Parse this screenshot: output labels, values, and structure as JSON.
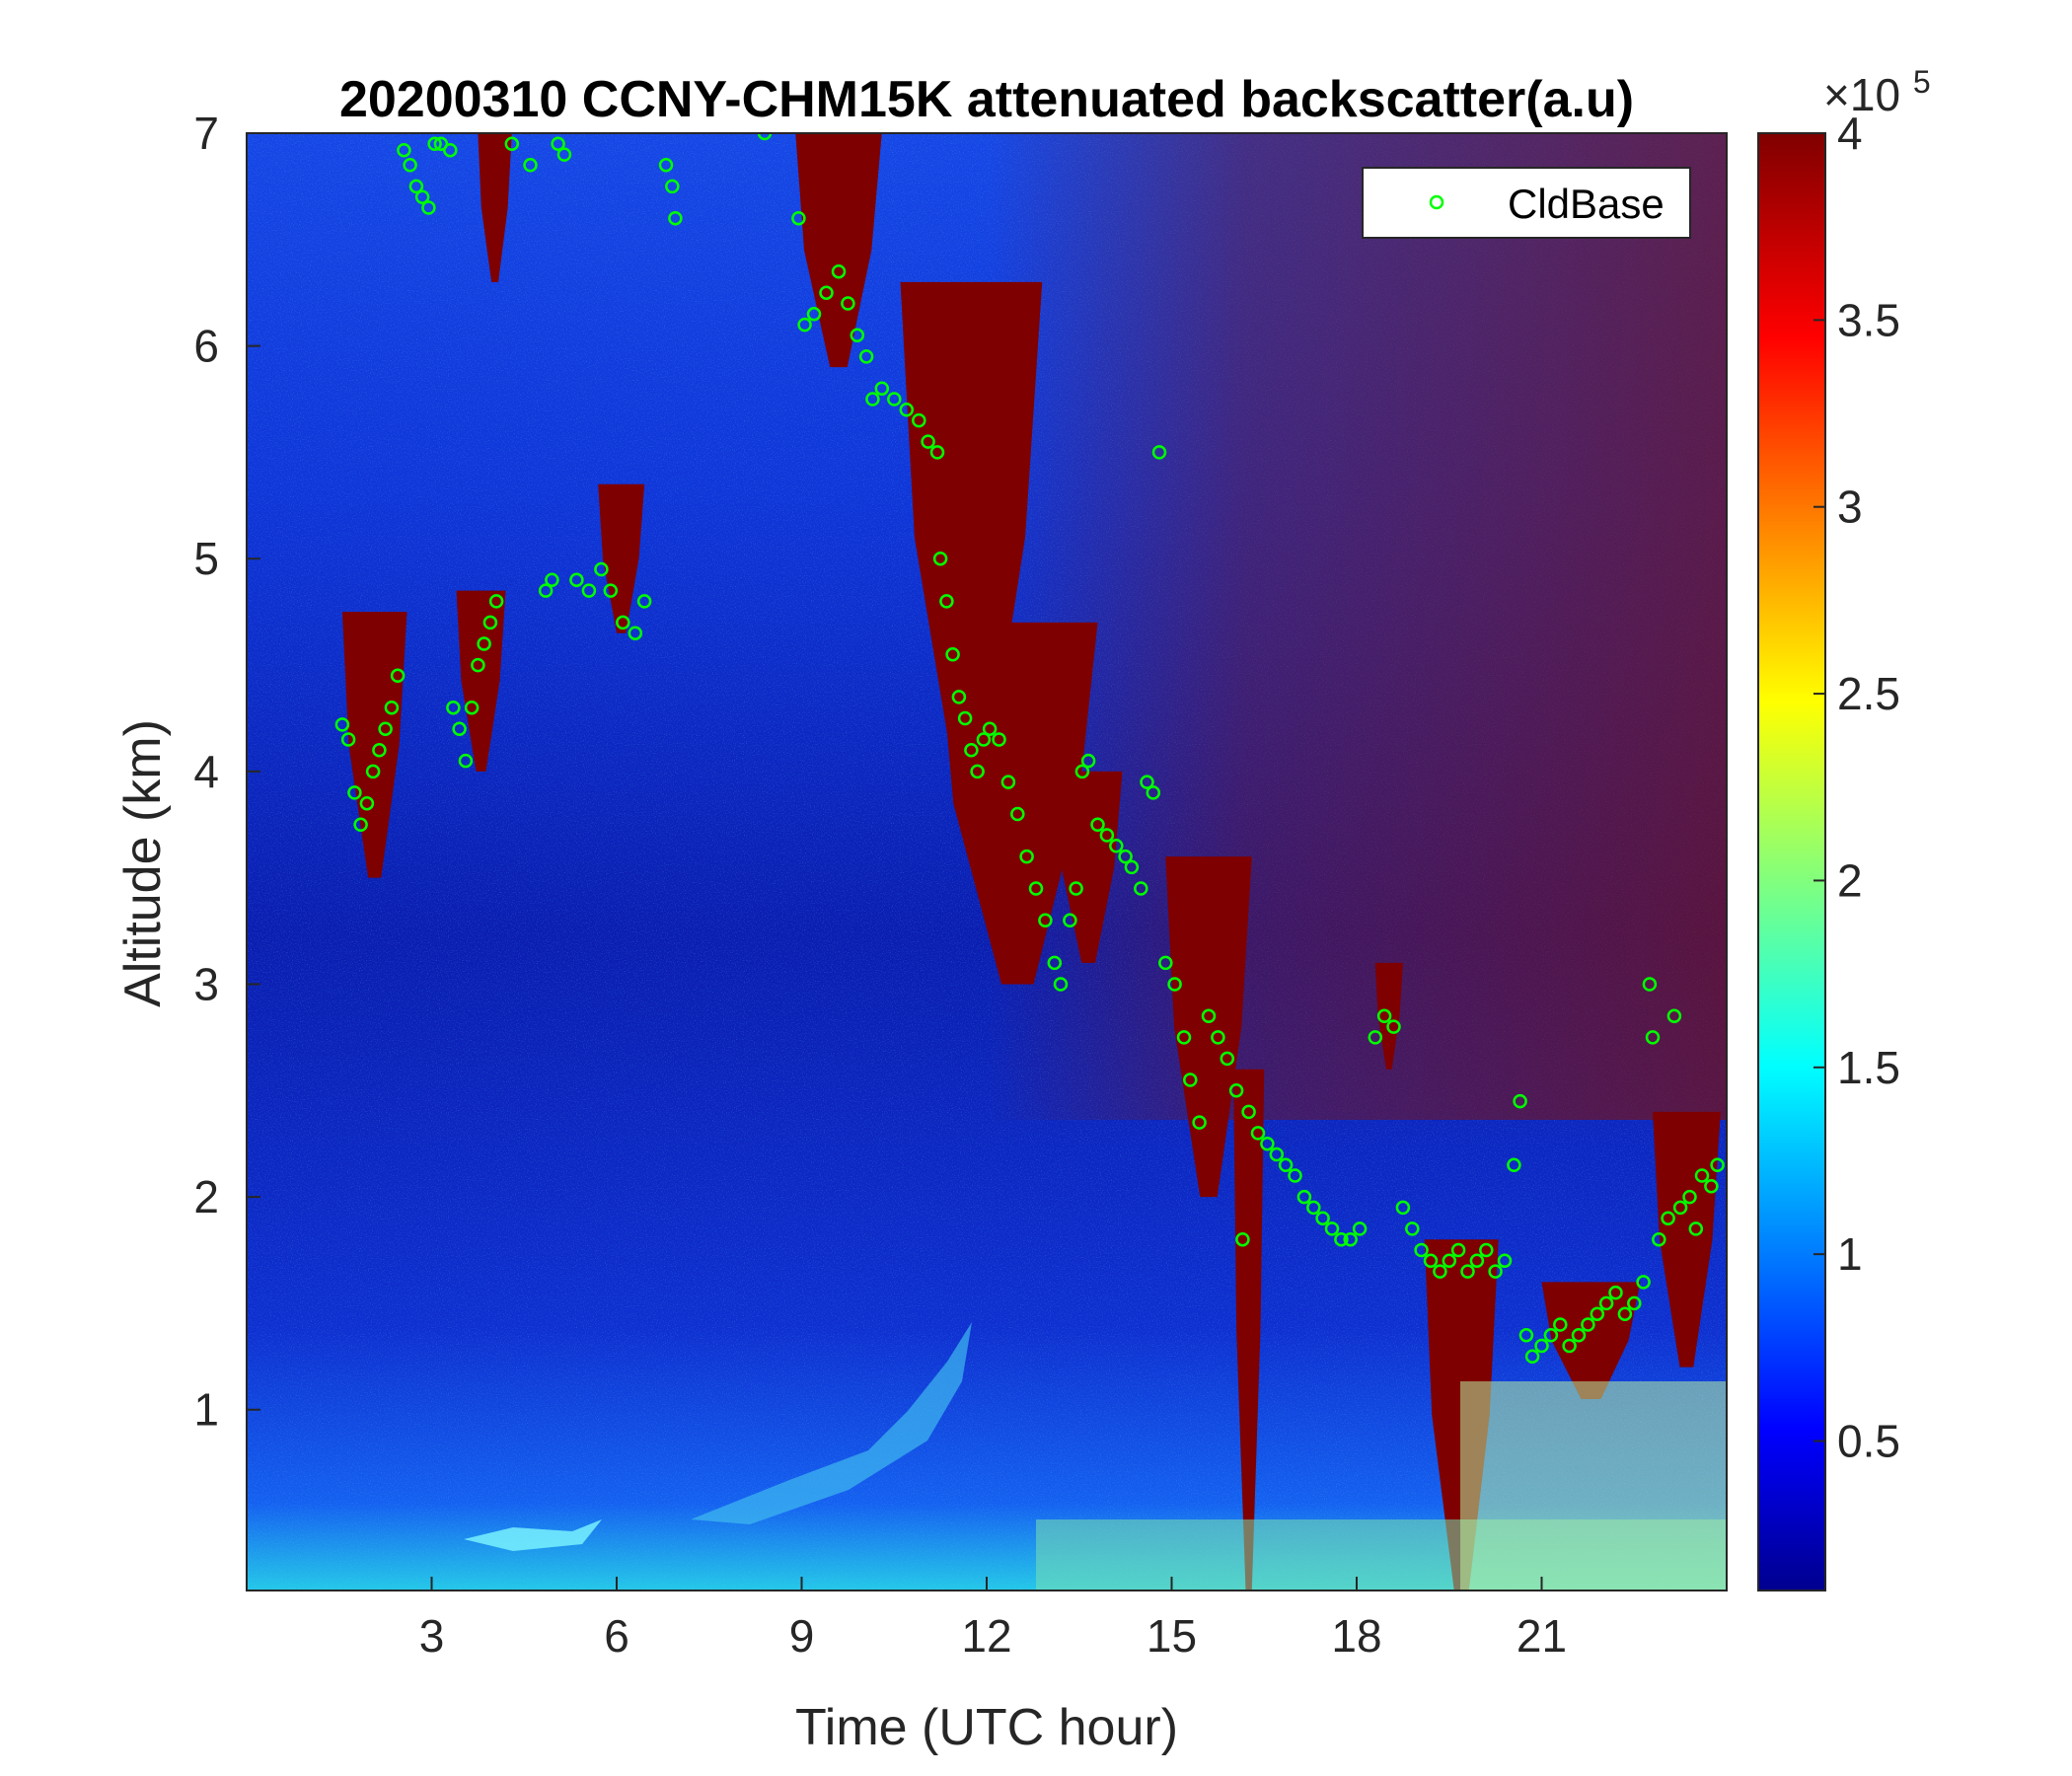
{
  "chart_data": {
    "type": "heatmap",
    "title": "20200310 CCNY-CHM15K attenuated backscatter(a.u)",
    "xlabel": "Time (UTC hour)",
    "ylabel": "Altitude (km)",
    "xlim": [
      0,
      24
    ],
    "ylim": [
      0.15,
      7
    ],
    "x_ticks": [
      3,
      6,
      9,
      12,
      15,
      18,
      21
    ],
    "x_tick_labels": [
      "3",
      "6",
      "9",
      "12",
      "15",
      "18",
      "21"
    ],
    "y_ticks": [
      1,
      2,
      3,
      4,
      5,
      6,
      7
    ],
    "y_tick_labels": [
      "1",
      "2",
      "3",
      "4",
      "5",
      "6",
      "7"
    ],
    "colorbar": {
      "colormap": "jet",
      "clim": [
        0.1,
        4
      ],
      "ticks": [
        0.5,
        1,
        1.5,
        2,
        2.5,
        3,
        3.5,
        4
      ],
      "tick_labels": [
        "0.5",
        "1",
        "1.5",
        "2",
        "2.5",
        "3",
        "3.5",
        "4"
      ],
      "exponent_label": "×10",
      "exponent_power": "5"
    },
    "legend": {
      "position": "top-right",
      "entries": [
        "CldBase"
      ]
    },
    "series": [
      {
        "name": "CldBase",
        "marker": "circle",
        "color": "#00ff00",
        "points": [
          [
            1.55,
            4.22
          ],
          [
            1.65,
            4.15
          ],
          [
            1.75,
            3.9
          ],
          [
            1.85,
            3.75
          ],
          [
            1.95,
            3.85
          ],
          [
            2.05,
            4.0
          ],
          [
            2.15,
            4.1
          ],
          [
            2.25,
            4.2
          ],
          [
            2.35,
            4.3
          ],
          [
            2.45,
            4.45
          ],
          [
            2.55,
            6.92
          ],
          [
            2.65,
            6.85
          ],
          [
            2.75,
            6.75
          ],
          [
            2.85,
            6.7
          ],
          [
            2.95,
            6.65
          ],
          [
            3.05,
            6.95
          ],
          [
            3.15,
            6.95
          ],
          [
            3.3,
            6.92
          ],
          [
            3.35,
            4.3
          ],
          [
            3.45,
            4.2
          ],
          [
            3.55,
            4.05
          ],
          [
            3.65,
            4.3
          ],
          [
            3.75,
            4.5
          ],
          [
            3.85,
            4.6
          ],
          [
            3.95,
            4.7
          ],
          [
            4.05,
            4.8
          ],
          [
            4.3,
            6.95
          ],
          [
            4.6,
            6.85
          ],
          [
            4.85,
            4.85
          ],
          [
            4.95,
            4.9
          ],
          [
            5.05,
            6.95
          ],
          [
            5.15,
            6.9
          ],
          [
            5.35,
            4.9
          ],
          [
            5.55,
            4.85
          ],
          [
            5.75,
            4.95
          ],
          [
            5.9,
            4.85
          ],
          [
            6.1,
            4.7
          ],
          [
            6.3,
            4.65
          ],
          [
            6.45,
            4.8
          ],
          [
            6.8,
            6.85
          ],
          [
            6.9,
            6.75
          ],
          [
            6.95,
            6.6
          ],
          [
            8.4,
            7.0
          ],
          [
            8.95,
            6.6
          ],
          [
            9.05,
            6.1
          ],
          [
            9.2,
            6.15
          ],
          [
            9.4,
            6.25
          ],
          [
            9.6,
            6.35
          ],
          [
            9.75,
            6.2
          ],
          [
            9.9,
            6.05
          ],
          [
            10.05,
            5.95
          ],
          [
            10.15,
            5.75
          ],
          [
            10.3,
            5.8
          ],
          [
            10.5,
            5.75
          ],
          [
            10.7,
            5.7
          ],
          [
            10.9,
            5.65
          ],
          [
            11.05,
            5.55
          ],
          [
            11.2,
            5.5
          ],
          [
            11.25,
            5.0
          ],
          [
            11.35,
            4.8
          ],
          [
            11.45,
            4.55
          ],
          [
            11.55,
            4.35
          ],
          [
            11.65,
            4.25
          ],
          [
            11.75,
            4.1
          ],
          [
            11.85,
            4.0
          ],
          [
            11.95,
            4.15
          ],
          [
            12.05,
            4.2
          ],
          [
            12.2,
            4.15
          ],
          [
            12.35,
            3.95
          ],
          [
            12.5,
            3.8
          ],
          [
            12.65,
            3.6
          ],
          [
            12.8,
            3.45
          ],
          [
            12.95,
            3.3
          ],
          [
            13.1,
            3.1
          ],
          [
            13.2,
            3.0
          ],
          [
            13.35,
            3.3
          ],
          [
            13.45,
            3.45
          ],
          [
            13.55,
            4.0
          ],
          [
            13.65,
            4.05
          ],
          [
            13.8,
            3.75
          ],
          [
            13.95,
            3.7
          ],
          [
            14.1,
            3.65
          ],
          [
            14.25,
            3.6
          ],
          [
            14.35,
            3.55
          ],
          [
            14.5,
            3.45
          ],
          [
            14.6,
            3.95
          ],
          [
            14.7,
            3.9
          ],
          [
            14.8,
            5.5
          ],
          [
            14.9,
            3.1
          ],
          [
            15.05,
            3.0
          ],
          [
            15.2,
            2.75
          ],
          [
            15.3,
            2.55
          ],
          [
            15.45,
            2.35
          ],
          [
            15.6,
            2.85
          ],
          [
            15.75,
            2.75
          ],
          [
            15.9,
            2.65
          ],
          [
            16.05,
            2.5
          ],
          [
            16.15,
            1.8
          ],
          [
            16.25,
            2.4
          ],
          [
            16.4,
            2.3
          ],
          [
            16.55,
            2.25
          ],
          [
            16.7,
            2.2
          ],
          [
            16.85,
            2.15
          ],
          [
            17.0,
            2.1
          ],
          [
            17.15,
            2.0
          ],
          [
            17.3,
            1.95
          ],
          [
            17.45,
            1.9
          ],
          [
            17.6,
            1.85
          ],
          [
            17.75,
            1.8
          ],
          [
            17.9,
            1.8
          ],
          [
            18.05,
            1.85
          ],
          [
            18.3,
            2.75
          ],
          [
            18.45,
            2.85
          ],
          [
            18.6,
            2.8
          ],
          [
            18.75,
            1.95
          ],
          [
            18.9,
            1.85
          ],
          [
            19.05,
            1.75
          ],
          [
            19.2,
            1.7
          ],
          [
            19.35,
            1.65
          ],
          [
            19.5,
            1.7
          ],
          [
            19.65,
            1.75
          ],
          [
            19.8,
            1.65
          ],
          [
            19.95,
            1.7
          ],
          [
            20.1,
            1.75
          ],
          [
            20.25,
            1.65
          ],
          [
            20.4,
            1.7
          ],
          [
            20.55,
            2.15
          ],
          [
            20.65,
            2.45
          ],
          [
            20.75,
            1.35
          ],
          [
            20.85,
            1.25
          ],
          [
            21.0,
            1.3
          ],
          [
            21.15,
            1.35
          ],
          [
            21.3,
            1.4
          ],
          [
            21.45,
            1.3
          ],
          [
            21.6,
            1.35
          ],
          [
            21.75,
            1.4
          ],
          [
            21.9,
            1.45
          ],
          [
            22.05,
            1.5
          ],
          [
            22.2,
            1.55
          ],
          [
            22.35,
            1.45
          ],
          [
            22.5,
            1.5
          ],
          [
            22.65,
            1.6
          ],
          [
            22.75,
            3.0
          ],
          [
            22.8,
            2.75
          ],
          [
            22.9,
            1.8
          ],
          [
            23.05,
            1.9
          ],
          [
            23.15,
            2.85
          ],
          [
            23.25,
            1.95
          ],
          [
            23.4,
            2.0
          ],
          [
            23.5,
            1.85
          ],
          [
            23.6,
            2.1
          ],
          [
            23.75,
            2.05
          ],
          [
            23.85,
            2.15
          ]
        ]
      }
    ],
    "cloud_regions": [
      {
        "t0": 1.55,
        "t1": 2.6,
        "zb": 3.5,
        "zt": 4.75
      },
      {
        "t0": 3.4,
        "t1": 4.2,
        "zb": 4.0,
        "zt": 4.85
      },
      {
        "t0": 5.7,
        "t1": 6.45,
        "zb": 4.65,
        "zt": 5.35
      },
      {
        "t0": 3.75,
        "t1": 4.3,
        "zb": 6.3,
        "zt": 7.0
      },
      {
        "t0": 8.9,
        "t1": 10.3,
        "zb": 5.9,
        "zt": 7.0
      },
      {
        "t0": 10.6,
        "t1": 12.9,
        "zb": 3.9,
        "zt": 6.3
      },
      {
        "t0": 11.2,
        "t1": 13.8,
        "zb": 3.0,
        "zt": 4.7
      },
      {
        "t0": 13.1,
        "t1": 14.2,
        "zb": 3.1,
        "zt": 4.0
      },
      {
        "t0": 14.9,
        "t1": 16.3,
        "zb": 2.0,
        "zt": 3.6
      },
      {
        "t0": 16.0,
        "t1": 16.5,
        "zb": 0.15,
        "zt": 2.6
      },
      {
        "t0": 18.3,
        "t1": 18.75,
        "zb": 2.6,
        "zt": 3.1
      },
      {
        "t0": 19.1,
        "t1": 20.3,
        "zb": 0.15,
        "zt": 1.8
      },
      {
        "t0": 21.0,
        "t1": 22.6,
        "zb": 1.05,
        "zt": 1.6
      },
      {
        "t0": 22.8,
        "t1": 23.9,
        "zb": 1.2,
        "zt": 2.4
      }
    ]
  }
}
